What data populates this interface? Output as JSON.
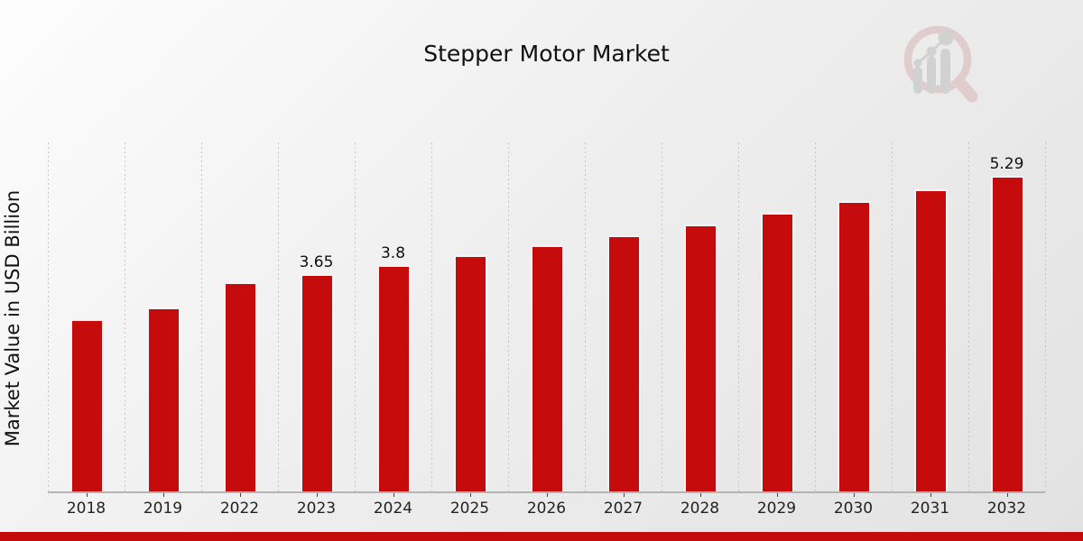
{
  "title": "Stepper Motor Market",
  "chart_data": {
    "type": "bar",
    "title": "Stepper Motor Market",
    "ylabel": "Market Value in USD Billion",
    "xlabel": "",
    "categories": [
      "2018",
      "2019",
      "2022",
      "2023",
      "2024",
      "2025",
      "2026",
      "2027",
      "2028",
      "2029",
      "2030",
      "2031",
      "2032"
    ],
    "values": [
      2.89,
      3.08,
      3.5,
      3.65,
      3.8,
      3.96,
      4.13,
      4.3,
      4.48,
      4.67,
      4.87,
      5.07,
      5.29
    ],
    "bar_labels": [
      "",
      "",
      "",
      "3.65",
      "3.8",
      "",
      "",
      "",
      "",
      "",
      "",
      "",
      "5.29"
    ],
    "ylim": [
      0,
      5.85
    ],
    "grid": "vertical-dashed",
    "legend": "none"
  },
  "colors": {
    "bar": "#c50b0b",
    "bar_border": "#f4f4f4",
    "grid": "#c6c6c6",
    "axis_line": "#b4b4b4",
    "tick": "#444444",
    "text": "#111111",
    "footer_strip": "#c30b0b",
    "logo_pink": "#d8b4b4",
    "logo_gray": "#bdbdbd"
  },
  "logo": {
    "name": "magnifier-bar-chart-logo"
  }
}
